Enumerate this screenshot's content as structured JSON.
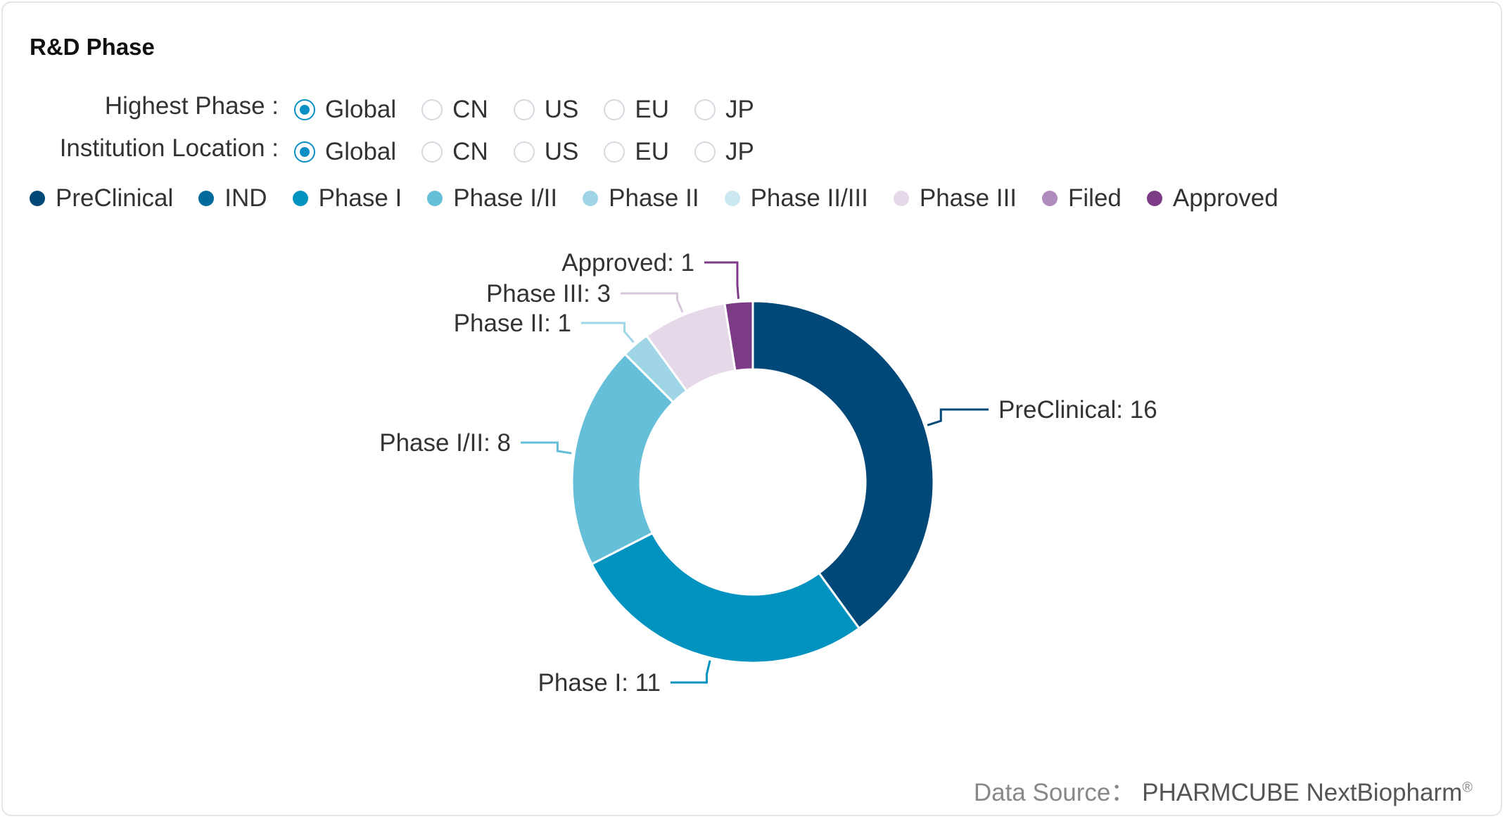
{
  "title": "R&D Phase",
  "filters": [
    {
      "label": "Highest Phase :",
      "options": [
        "Global",
        "CN",
        "US",
        "EU",
        "JP"
      ],
      "selected": "Global"
    },
    {
      "label": "Institution Location :",
      "options": [
        "Global",
        "CN",
        "US",
        "EU",
        "JP"
      ],
      "selected": "Global"
    }
  ],
  "legend": [
    {
      "name": "PreClinical",
      "color": "#004878"
    },
    {
      "name": "IND",
      "color": "#006a9a"
    },
    {
      "name": "Phase I",
      "color": "#0093c0"
    },
    {
      "name": "Phase I/II",
      "color": "#66bfd8"
    },
    {
      "name": "Phase II",
      "color": "#9fd5e6"
    },
    {
      "name": "Phase II/III",
      "color": "#cbe8f0"
    },
    {
      "name": "Phase III",
      "color": "#e5d8e8"
    },
    {
      "name": "Filed",
      "color": "#b08cbd"
    },
    {
      "name": "Approved",
      "color": "#7b3c85"
    }
  ],
  "chart_data": {
    "type": "pie",
    "donut": true,
    "slices": [
      {
        "name": "PreClinical",
        "value": 16,
        "label": "PreClinical: 16",
        "color": "#004878"
      },
      {
        "name": "Phase I",
        "value": 11,
        "label": "Phase I: 11",
        "color": "#0093c0"
      },
      {
        "name": "Phase I/II",
        "value": 8,
        "label": "Phase I/II: 8",
        "color": "#66bfd8"
      },
      {
        "name": "Phase II",
        "value": 1,
        "label": "Phase II: 1",
        "color": "#9fd5e6"
      },
      {
        "name": "Phase III",
        "value": 3,
        "label": "Phase III: 3",
        "color": "#e5d8e8"
      },
      {
        "name": "Approved",
        "value": 1,
        "label": "Approved: 1",
        "color": "#7b3c85"
      }
    ]
  },
  "source": {
    "prefix": "Data Source：",
    "brand": "PHARMCUBE NextBiopharm",
    "mark": "®"
  }
}
